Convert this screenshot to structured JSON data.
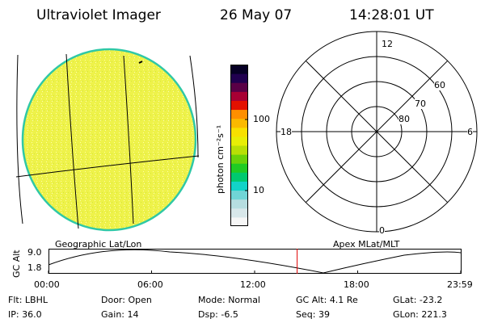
{
  "header": {
    "title": "Ultraviolet Imager",
    "date": "26 May 07",
    "time": "14:28:01 UT"
  },
  "colorbar": {
    "unit_label": "photon cm⁻²s⁻¹",
    "ticks": [
      "100",
      "10"
    ],
    "colors": [
      "#f6f6f6",
      "#d8e7ea",
      "#b6dde0",
      "#70d5d6",
      "#12d3c8",
      "#00c96f",
      "#20cb24",
      "#6ad20a",
      "#b8df06",
      "#e8ee06",
      "#f8e000",
      "#fbb900",
      "#ff8f00",
      "#e31100",
      "#a80034",
      "#5a0046",
      "#20004f",
      "#060025"
    ]
  },
  "image": {
    "fill_color": "#eef24a",
    "edge_color": "#2fc8a6"
  },
  "polar": {
    "mlt_labels": {
      "top": "12",
      "bottom": "0",
      "left": "18",
      "right": "6"
    },
    "lat_labels": [
      "60",
      "70",
      "80"
    ]
  },
  "timeline": {
    "ylabel": "GC Alt",
    "yticks": [
      "9.0",
      "1.8"
    ],
    "left_caption": "Geographic Lat/Lon",
    "right_caption": "Apex MLat/MLT",
    "xticks": [
      "00:00",
      "06:00",
      "12:00",
      "18:00",
      "23:59"
    ],
    "current_time_marker": "14:28:01",
    "marker_color": "#e00000"
  },
  "info": [
    [
      {
        "label": "Flt:",
        "value": "LBHL"
      },
      {
        "label": "IP:",
        "value": "36.0"
      }
    ],
    [
      {
        "label": "Door:",
        "value": "Open"
      },
      {
        "label": "Gain:",
        "value": "14"
      }
    ],
    [
      {
        "label": "Mode:",
        "value": "Normal"
      },
      {
        "label": "Dsp:",
        "value": "-6.5"
      }
    ],
    [
      {
        "label": "GC Alt:",
        "value": "4.1 Re"
      },
      {
        "label": "Seq:",
        "value": "39"
      }
    ],
    [
      {
        "label": "GLat:",
        "value": "-23.2"
      },
      {
        "label": "GLon:",
        "value": "221.3"
      }
    ]
  ]
}
